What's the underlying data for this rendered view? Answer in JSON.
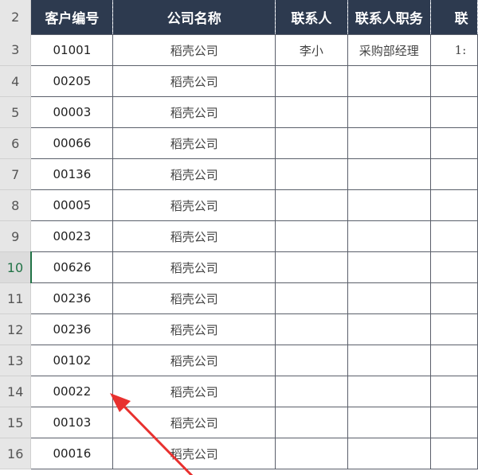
{
  "headers": {
    "row_number": "2",
    "col_a": "客户编号",
    "col_b": "公司名称",
    "col_c": "联系人",
    "col_d": "联系人职务",
    "col_e": "联"
  },
  "rows": [
    {
      "n": "3",
      "id": "01001",
      "company": "稻壳公司",
      "contact": "李小",
      "title": "采购部经理",
      "e": "1:"
    },
    {
      "n": "4",
      "id": "00205",
      "company": "稻壳公司",
      "contact": "",
      "title": "",
      "e": ""
    },
    {
      "n": "5",
      "id": "00003",
      "company": "稻壳公司",
      "contact": "",
      "title": "",
      "e": ""
    },
    {
      "n": "6",
      "id": "00066",
      "company": "稻壳公司",
      "contact": "",
      "title": "",
      "e": ""
    },
    {
      "n": "7",
      "id": "00136",
      "company": "稻壳公司",
      "contact": "",
      "title": "",
      "e": ""
    },
    {
      "n": "8",
      "id": "00005",
      "company": "稻壳公司",
      "contact": "",
      "title": "",
      "e": ""
    },
    {
      "n": "9",
      "id": "00023",
      "company": "稻壳公司",
      "contact": "",
      "title": "",
      "e": ""
    },
    {
      "n": "10",
      "id": "00626",
      "company": "稻壳公司",
      "contact": "",
      "title": "",
      "e": ""
    },
    {
      "n": "11",
      "id": "00236",
      "company": "稻壳公司",
      "contact": "",
      "title": "",
      "e": ""
    },
    {
      "n": "12",
      "id": "00236",
      "company": "稻壳公司",
      "contact": "",
      "title": "",
      "e": ""
    },
    {
      "n": "13",
      "id": "00102",
      "company": "稻壳公司",
      "contact": "",
      "title": "",
      "e": ""
    },
    {
      "n": "14",
      "id": "00022",
      "company": "稻壳公司",
      "contact": "",
      "title": "",
      "e": ""
    },
    {
      "n": "15",
      "id": "00103",
      "company": "稻壳公司",
      "contact": "",
      "title": "",
      "e": ""
    },
    {
      "n": "16",
      "id": "00016",
      "company": "稻壳公司",
      "contact": "",
      "title": "",
      "e": ""
    }
  ],
  "active_row": "10",
  "colors": {
    "header_bg": "#2d3a4f",
    "active_row_header": "#217346",
    "arrow": "#e8312f"
  }
}
